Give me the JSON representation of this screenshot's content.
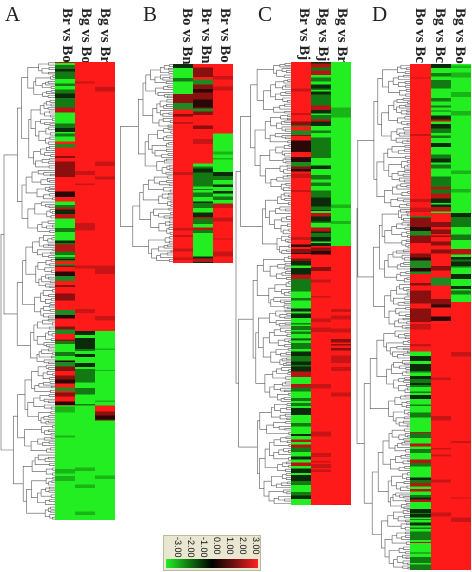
{
  "figure": {
    "panels": [
      {
        "letter": "A",
        "columns": [
          "Br vs Bo",
          "Bg vs Bo",
          "Bg vs Br"
        ]
      },
      {
        "letter": "B",
        "columns": [
          "Bo vs Bn",
          "Br vs Bn",
          "Br vs Bo"
        ]
      },
      {
        "letter": "C",
        "columns": [
          "Br vs Bj",
          "Bg vs Bj",
          "Bg vs Br"
        ]
      },
      {
        "letter": "D",
        "columns": [
          "Bo vs Bc",
          "Bg vs Bc",
          "Bg vs Bo"
        ]
      }
    ],
    "legend": {
      "ticks": [
        "-3.00",
        "-2.00",
        "-1.00",
        "0.00",
        "1.00",
        "2.00",
        "3.00"
      ],
      "colors": [
        "#22ee22",
        "#117711",
        "#000000",
        "#771111",
        "#ff2222"
      ]
    }
  }
}
